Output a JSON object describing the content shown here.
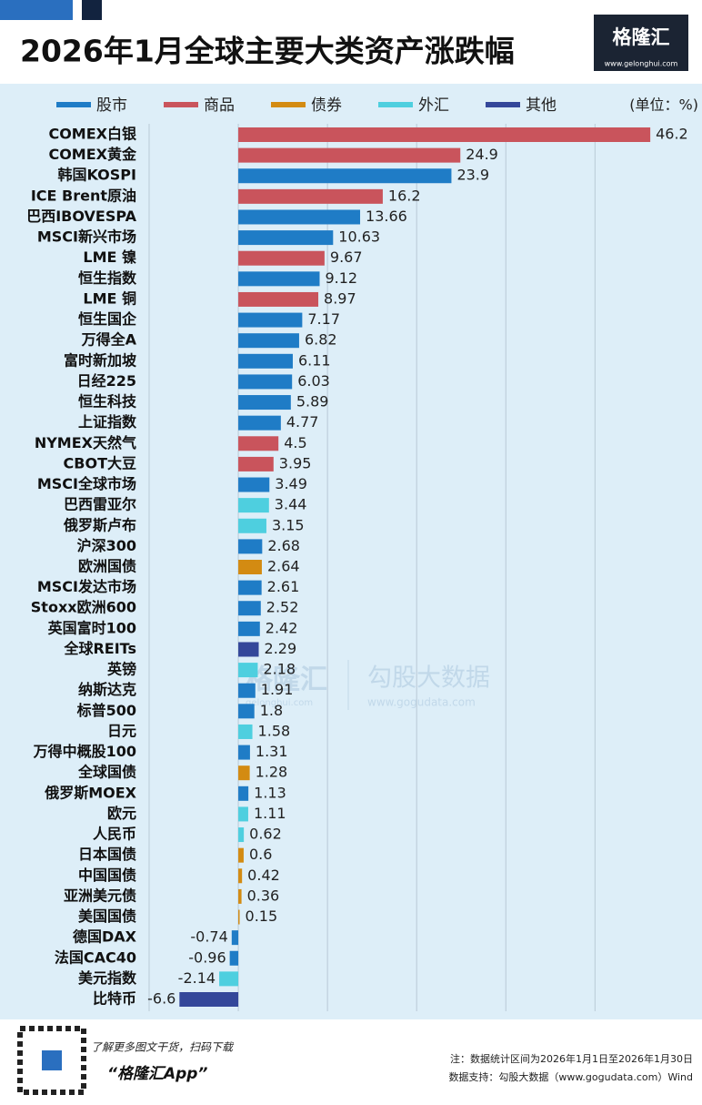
{
  "chart_data": {
    "type": "hbar",
    "title": "2026年1月全球主要大类资产涨跌幅",
    "unit": "(单位：%)",
    "categories": [
      "COMEX白银",
      "COMEX黄金",
      "韩国KOSPI",
      "ICE Brent原油",
      "巴西IBOVESPA",
      "MSCI新兴市场",
      "LME 镍",
      "恒生指数",
      "LME 铜",
      "恒生国企",
      "万得全A",
      "富时新加坡",
      "日经225",
      "恒生科技",
      "上证指数",
      "NYMEX天然气",
      "CBOT大豆",
      "MSCI全球市场",
      "巴西雷亚尔",
      "俄罗斯卢布",
      "沪深300",
      "欧洲国债",
      "MSCI发达市场",
      "Stoxx欧洲600",
      "英国富时100",
      "全球REITs",
      "英镑",
      "纳斯达克",
      "标普500",
      "日元",
      "万得中概股100",
      "全球国债",
      "俄罗斯MOEX",
      "欧元",
      "人民币",
      "日本国债",
      "中国国债",
      "亚洲美元债",
      "美国国债",
      "德国DAX",
      "法国CAC40",
      "美元指数",
      "比特币"
    ],
    "series": [
      {
        "name": "股市",
        "color": "#1f7cc6",
        "values": [
          null,
          null,
          23.9,
          null,
          13.66,
          10.63,
          null,
          9.12,
          null,
          7.17,
          6.82,
          6.11,
          6.03,
          5.89,
          4.77,
          null,
          null,
          3.49,
          null,
          null,
          2.68,
          null,
          2.61,
          2.52,
          2.42,
          null,
          null,
          1.91,
          1.8,
          null,
          1.31,
          null,
          1.13,
          null,
          null,
          null,
          null,
          null,
          null,
          -0.74,
          -0.96,
          null,
          null
        ]
      },
      {
        "name": "商品",
        "color": "#c9545c",
        "values": [
          46.2,
          24.9,
          null,
          16.2,
          null,
          null,
          9.67,
          null,
          8.97,
          null,
          null,
          null,
          null,
          null,
          null,
          4.5,
          3.95,
          null,
          null,
          null,
          null,
          null,
          null,
          null,
          null,
          null,
          null,
          null,
          null,
          null,
          null,
          null,
          null,
          null,
          null,
          null,
          null,
          null,
          null,
          null,
          null,
          null,
          null
        ]
      },
      {
        "name": "债券",
        "color": "#d38b12",
        "values": [
          null,
          null,
          null,
          null,
          null,
          null,
          null,
          null,
          null,
          null,
          null,
          null,
          null,
          null,
          null,
          null,
          null,
          null,
          null,
          null,
          null,
          2.64,
          null,
          null,
          null,
          null,
          null,
          null,
          null,
          null,
          null,
          1.28,
          null,
          null,
          null,
          0.6,
          0.42,
          0.36,
          0.15,
          null,
          null,
          null,
          null
        ]
      },
      {
        "name": "外汇",
        "color": "#4ecfdf",
        "values": [
          null,
          null,
          null,
          null,
          null,
          null,
          null,
          null,
          null,
          null,
          null,
          null,
          null,
          null,
          null,
          null,
          null,
          null,
          3.44,
          3.15,
          null,
          null,
          null,
          null,
          null,
          null,
          2.18,
          null,
          null,
          1.58,
          null,
          null,
          null,
          1.11,
          0.62,
          null,
          null,
          null,
          null,
          null,
          null,
          -2.14,
          null
        ]
      },
      {
        "name": "其他",
        "color": "#34479a",
        "values": [
          null,
          null,
          null,
          null,
          null,
          null,
          null,
          null,
          null,
          null,
          null,
          null,
          null,
          null,
          null,
          null,
          null,
          null,
          null,
          null,
          null,
          null,
          null,
          null,
          null,
          2.29,
          null,
          null,
          null,
          null,
          null,
          null,
          null,
          null,
          null,
          null,
          null,
          null,
          null,
          null,
          null,
          null,
          -6.6
        ]
      }
    ],
    "xlim": [
      -10,
      52
    ],
    "xgrid": [
      -10,
      0,
      10,
      20,
      30,
      40
    ],
    "grid": true
  },
  "brand": {
    "name": "格隆汇",
    "url": "www.gelonghui.com"
  },
  "watermark": {
    "brand": "格隆汇",
    "brand_url": "gelonghui.com",
    "data": "勾股大数据",
    "data_url": "www.gogudata.com"
  },
  "footer": {
    "promo": "了解更多图文干货，扫码下载",
    "app": "“格隆汇App”",
    "note": "注：数据统计区间为2026年1月1日至2026年1月30日",
    "source": "数据支持：勾股大数据（www.gogudata.com）Wind"
  }
}
